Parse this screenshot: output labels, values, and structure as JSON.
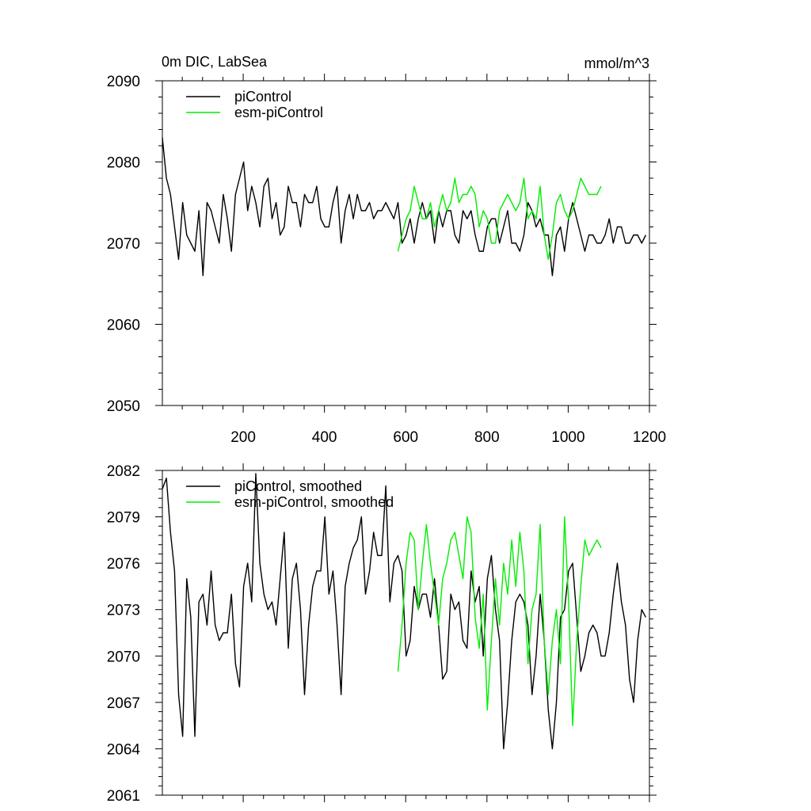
{
  "colors": {
    "piControl": "#000000",
    "esm_piControl": "#00ee00"
  },
  "chart_data": [
    {
      "type": "line",
      "title": "0m DIC, LabSea",
      "unit_label": "mmol/m^3",
      "xlabel": "",
      "ylabel": "",
      "xlim": [
        1,
        1200
      ],
      "ylim": [
        2050,
        2090
      ],
      "x_ticks": [
        200,
        400,
        600,
        800,
        1000,
        1200
      ],
      "x_tick_labels": [
        "200",
        "400",
        "600",
        "800",
        "1000",
        "1200"
      ],
      "y_ticks": [
        2050,
        2060,
        2070,
        2080,
        2090
      ],
      "y_tick_labels": [
        "2050",
        "2060",
        "2070",
        "2080",
        "2090"
      ],
      "legend_position": "top-left",
      "grid": false,
      "series": [
        {
          "name": "piControl",
          "color": "#000000",
          "x_start": 1,
          "x_step": 10,
          "values": [
            2083,
            2078,
            2076,
            2072,
            2068,
            2075,
            2071,
            2070,
            2069,
            2074,
            2066,
            2075,
            2074,
            2072,
            2070,
            2076,
            2073,
            2069,
            2076,
            2078,
            2080,
            2074,
            2077,
            2075,
            2072,
            2077,
            2078,
            2073,
            2075,
            2071,
            2072,
            2077,
            2075,
            2075,
            2072,
            2076,
            2075,
            2075,
            2077,
            2073,
            2072,
            2072,
            2075,
            2077,
            2070,
            2074,
            2076,
            2073,
            2076,
            2074,
            2074,
            2075,
            2073,
            2074,
            2074,
            2075,
            2074,
            2073,
            2075,
            2070,
            2071,
            2073,
            2070,
            2073,
            2075,
            2073,
            2074,
            2070,
            2074,
            2072,
            2074,
            2074,
            2071,
            2070,
            2074,
            2073,
            2074,
            2071,
            2069,
            2069,
            2072,
            2073,
            2073,
            2070,
            2072,
            2074,
            2070,
            2070,
            2069,
            2071,
            2075,
            2074,
            2072,
            2073,
            2071,
            2071,
            2066,
            2071,
            2072,
            2069,
            2073,
            2075,
            2073,
            2071,
            2069,
            2071,
            2071,
            2070,
            2070,
            2071,
            2073,
            2070,
            2072,
            2072,
            2070,
            2070,
            2071,
            2071,
            2070,
            2071
          ]
        },
        {
          "name": "esm-piControl",
          "color": "#00ee00",
          "x_start": 581,
          "x_step": 10,
          "values": [
            2069,
            2071,
            2073,
            2074,
            2077,
            2075,
            2073,
            2073,
            2075,
            2072,
            2074,
            2076,
            2074,
            2075,
            2078,
            2075,
            2076,
            2076,
            2077,
            2076,
            2072,
            2074,
            2073,
            2070,
            2070,
            2074,
            2075,
            2076,
            2075,
            2074,
            2075,
            2078,
            2073,
            2074,
            2073,
            2077,
            2071,
            2068,
            2071,
            2075,
            2076,
            2074,
            2073,
            2074,
            2076,
            2078,
            2077,
            2076,
            2076,
            2076,
            2077
          ]
        }
      ]
    },
    {
      "type": "line",
      "title": "",
      "xlabel": "",
      "ylabel": "",
      "xlim": [
        1,
        1200
      ],
      "ylim": [
        2061,
        2082
      ],
      "y_ticks": [
        2061,
        2064,
        2067,
        2070,
        2073,
        2076,
        2079,
        2082
      ],
      "y_tick_labels": [
        "2061",
        "2064",
        "2067",
        "2070",
        "2073",
        "2076",
        "2079",
        "2082"
      ],
      "legend_position": "top-left",
      "grid": false,
      "series": [
        {
          "name": "piControl, smoothed",
          "color": "#000000",
          "x_start": 1,
          "x_step": 10,
          "values": [
            2080.8,
            2081.5,
            2078.0,
            2075.5,
            2067.5,
            2064.8,
            2075.0,
            2072.5,
            2064.8,
            2073.5,
            2074.0,
            2072.0,
            2075.5,
            2072.0,
            2071.0,
            2071.5,
            2071.5,
            2074.0,
            2069.5,
            2068.0,
            2074.5,
            2076.0,
            2073.5,
            2081.8,
            2076.0,
            2074.0,
            2073.0,
            2073.5,
            2072.0,
            2075.0,
            2078.0,
            2070.5,
            2075.0,
            2076.0,
            2073.0,
            2067.5,
            2072.0,
            2074.5,
            2075.5,
            2075.5,
            2079.0,
            2074.0,
            2075.5,
            2072.0,
            2067.5,
            2074.5,
            2076.0,
            2077.0,
            2077.5,
            2079.0,
            2074.0,
            2075.5,
            2078.0,
            2076.5,
            2076.5,
            2081.0,
            2073.5,
            2076.0,
            2076.5,
            2075.5,
            2070.0,
            2071.0,
            2074.5,
            2073.0,
            2074.0,
            2074.0,
            2072.5,
            2075.0,
            2072.0,
            2068.5,
            2069.0,
            2074.0,
            2073.0,
            2073.5,
            2071.0,
            2070.5,
            2075.5,
            2073.5,
            2074.5,
            2070.0,
            2075.0,
            2076.5,
            2073.0,
            2071.0,
            2064.0,
            2067.0,
            2071.0,
            2073.5,
            2074.0,
            2073.5,
            2072.0,
            2067.5,
            2070.0,
            2074.0,
            2071.0,
            2066.5,
            2064.0,
            2067.0,
            2072.5,
            2073.0,
            2075.5,
            2076.0,
            2072.5,
            2069.0,
            2070.0,
            2071.5,
            2072.0,
            2071.5,
            2070.0,
            2070.0,
            2071.5,
            2074.0,
            2076.0,
            2073.5,
            2072.0,
            2068.5,
            2067.0,
            2071.0,
            2073.0,
            2072.5
          ]
        },
        {
          "name": "esm-piControl, smoothed",
          "color": "#00ee00",
          "x_start": 581,
          "x_step": 10,
          "values": [
            2069.0,
            2072.0,
            2076.0,
            2078.0,
            2077.5,
            2073.0,
            2076.0,
            2078.5,
            2076.0,
            2074.0,
            2072.0,
            2075.0,
            2076.0,
            2077.5,
            2078.0,
            2076.5,
            2075.0,
            2079.0,
            2078.0,
            2072.5,
            2070.5,
            2074.0,
            2066.5,
            2071.0,
            2075.0,
            2072.0,
            2076.0,
            2074.0,
            2077.5,
            2074.5,
            2078.0,
            2075.5,
            2069.5,
            2073.0,
            2074.0,
            2078.5,
            2071.0,
            2067.5,
            2071.0,
            2073.0,
            2069.5,
            2079.0,
            2073.5,
            2065.5,
            2071.0,
            2074.5,
            2077.5,
            2076.5,
            2077.0,
            2077.5,
            2077.0
          ]
        }
      ]
    }
  ]
}
